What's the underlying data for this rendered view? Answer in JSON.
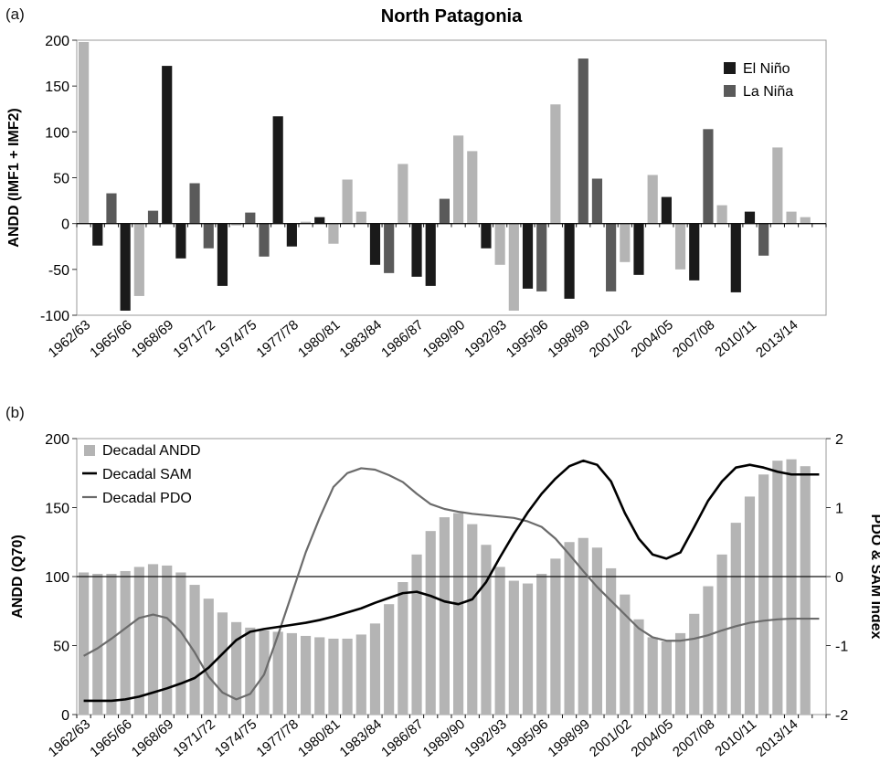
{
  "figure": {
    "panel_a_label": "(a)",
    "panel_b_label": "(b)"
  },
  "colors": {
    "el_nino": "#1a1a1a",
    "la_nina": "#5a5a5a",
    "neutral": "#b4b4b4",
    "decadal_andd": "#b4b4b4",
    "decadal_sam": "#000000",
    "decadal_pdo": "#6b6b6b"
  },
  "chart_data": [
    {
      "type": "bar",
      "title": "North Patagonia",
      "ylabel": "ANDD (IMF1 + IMF2)",
      "xlabel": "",
      "ylim": [
        -100,
        200
      ],
      "yticks": [
        -100,
        -50,
        0,
        50,
        100,
        150,
        200
      ],
      "grid": false,
      "legend_position": "top-right",
      "legend": [
        "El Niño",
        "La Niña"
      ],
      "categories": [
        "1962/63",
        "1963/64",
        "1964/65",
        "1965/66",
        "1966/67",
        "1967/68",
        "1968/69",
        "1969/70",
        "1970/71",
        "1971/72",
        "1972/73",
        "1973/74",
        "1974/75",
        "1975/76",
        "1976/77",
        "1977/78",
        "1978/79",
        "1979/80",
        "1980/81",
        "1981/82",
        "1982/83",
        "1983/84",
        "1984/85",
        "1985/86",
        "1986/87",
        "1987/88",
        "1988/89",
        "1989/90",
        "1990/91",
        "1991/92",
        "1992/93",
        "1993/94",
        "1994/95",
        "1995/96",
        "1996/97",
        "1997/98",
        "1998/99",
        "1999/00",
        "2000/01",
        "2001/02",
        "2002/03",
        "2003/04",
        "2004/05",
        "2005/06",
        "2006/07",
        "2007/08",
        "2008/09",
        "2009/10",
        "2010/11",
        "2011/12",
        "2012/13",
        "2013/14",
        "2014/15",
        "2015/16"
      ],
      "tick_labels": [
        "1962/63",
        "1965/66",
        "1968/69",
        "1971/72",
        "1974/75",
        "1977/78",
        "1980/81",
        "1983/84",
        "1986/87",
        "1989/90",
        "1992/93",
        "1995/96",
        "1998/99",
        "2001/02",
        "2004/05",
        "2007/08",
        "2010/11",
        "2013/14"
      ],
      "values": [
        198,
        -24,
        33,
        -95,
        -79,
        14,
        172,
        -38,
        44,
        -27,
        -68,
        -2,
        12,
        -36,
        117,
        -25,
        2,
        7,
        -22,
        48,
        13,
        -45,
        -54,
        65,
        -58,
        -68,
        27,
        96,
        79,
        -27,
        -45,
        -95,
        -71,
        -74,
        130,
        -82,
        180,
        49,
        -74,
        -42,
        -56,
        53,
        29,
        -50,
        -62,
        103,
        20,
        -75,
        13,
        -35,
        83,
        13,
        7,
        0
      ],
      "phase": [
        "N",
        "E",
        "L",
        "E",
        "N",
        "L",
        "E",
        "E",
        "L",
        "L",
        "E",
        "N",
        "L",
        "L",
        "E",
        "E",
        "N",
        "E",
        "N",
        "N",
        "N",
        "E",
        "L",
        "N",
        "E",
        "E",
        "L",
        "N",
        "N",
        "E",
        "N",
        "N",
        "E",
        "L",
        "N",
        "E",
        "L",
        "L",
        "L",
        "N",
        "E",
        "N",
        "E",
        "N",
        "E",
        "L",
        "N",
        "E",
        "E",
        "L",
        "N",
        "N",
        "N",
        "N"
      ]
    },
    {
      "type": "bar",
      "ylabel": "ANDD (Q70)",
      "y2label": "PDO & SAM Index",
      "xlabel": "",
      "ylim": [
        0,
        200
      ],
      "y2lim": [
        -2,
        2
      ],
      "yticks": [
        0,
        50,
        100,
        150,
        200
      ],
      "y2ticks": [
        -2,
        -1,
        0,
        1,
        2
      ],
      "grid": false,
      "reference_line_y": 100,
      "legend_position": "top-left",
      "categories": [
        "1962/63",
        "1963/64",
        "1964/65",
        "1965/66",
        "1966/67",
        "1967/68",
        "1968/69",
        "1969/70",
        "1970/71",
        "1971/72",
        "1972/73",
        "1973/74",
        "1974/75",
        "1975/76",
        "1976/77",
        "1977/78",
        "1978/79",
        "1979/80",
        "1980/81",
        "1981/82",
        "1982/83",
        "1983/84",
        "1984/85",
        "1985/86",
        "1986/87",
        "1987/88",
        "1988/89",
        "1989/90",
        "1990/91",
        "1991/92",
        "1992/93",
        "1993/94",
        "1994/95",
        "1995/96",
        "1996/97",
        "1997/98",
        "1998/99",
        "1999/00",
        "2000/01",
        "2001/02",
        "2002/03",
        "2003/04",
        "2004/05",
        "2005/06",
        "2006/07",
        "2007/08",
        "2008/09",
        "2009/10",
        "2010/11",
        "2011/12",
        "2012/13",
        "2013/14",
        "2014/15",
        "2015/16"
      ],
      "tick_labels": [
        "1962/63",
        "1965/66",
        "1968/69",
        "1971/72",
        "1974/75",
        "1977/78",
        "1980/81",
        "1983/84",
        "1986/87",
        "1989/90",
        "1992/93",
        "1995/96",
        "1998/99",
        "2001/02",
        "2004/05",
        "2007/08",
        "2010/11",
        "2013/14"
      ],
      "series": [
        {
          "name": "Decadal ANDD",
          "kind": "bar",
          "axis": "left",
          "values": [
            103,
            102,
            102,
            104,
            107,
            109,
            108,
            103,
            94,
            84,
            74,
            67,
            63,
            61,
            60,
            59,
            57,
            56,
            55,
            55,
            58,
            66,
            80,
            96,
            116,
            133,
            143,
            146,
            138,
            123,
            107,
            97,
            95,
            102,
            113,
            125,
            128,
            121,
            106,
            87,
            69,
            56,
            53,
            59,
            73,
            93,
            116,
            139,
            158,
            174,
            184,
            185,
            180,
            0
          ]
        },
        {
          "name": "Decadal SAM",
          "kind": "line",
          "axis": "right",
          "values": [
            -1.8,
            -1.8,
            -1.8,
            -1.78,
            -1.74,
            -1.68,
            -1.62,
            -1.55,
            -1.47,
            -1.32,
            -1.12,
            -0.92,
            -0.8,
            -0.76,
            -0.73,
            -0.7,
            -0.67,
            -0.63,
            -0.58,
            -0.52,
            -0.46,
            -0.38,
            -0.31,
            -0.24,
            -0.22,
            -0.28,
            -0.36,
            -0.4,
            -0.33,
            -0.08,
            0.28,
            0.62,
            0.93,
            1.2,
            1.42,
            1.6,
            1.68,
            1.62,
            1.38,
            0.92,
            0.55,
            0.32,
            0.26,
            0.35,
            0.72,
            1.1,
            1.38,
            1.58,
            1.62,
            1.58,
            1.52,
            1.48,
            1.48,
            1.48
          ]
        },
        {
          "name": "Decadal PDO",
          "kind": "line",
          "axis": "right",
          "values": [
            -1.15,
            -1.04,
            -0.9,
            -0.75,
            -0.6,
            -0.55,
            -0.6,
            -0.8,
            -1.1,
            -1.45,
            -1.68,
            -1.78,
            -1.7,
            -1.42,
            -0.85,
            -0.25,
            0.35,
            0.85,
            1.3,
            1.5,
            1.57,
            1.55,
            1.47,
            1.37,
            1.2,
            1.05,
            0.98,
            0.94,
            0.91,
            0.89,
            0.87,
            0.85,
            0.8,
            0.72,
            0.55,
            0.32,
            0.08,
            -0.15,
            -0.35,
            -0.55,
            -0.75,
            -0.88,
            -0.93,
            -0.93,
            -0.9,
            -0.85,
            -0.78,
            -0.72,
            -0.67,
            -0.64,
            -0.62,
            -0.61,
            -0.61,
            -0.61
          ]
        }
      ]
    }
  ]
}
